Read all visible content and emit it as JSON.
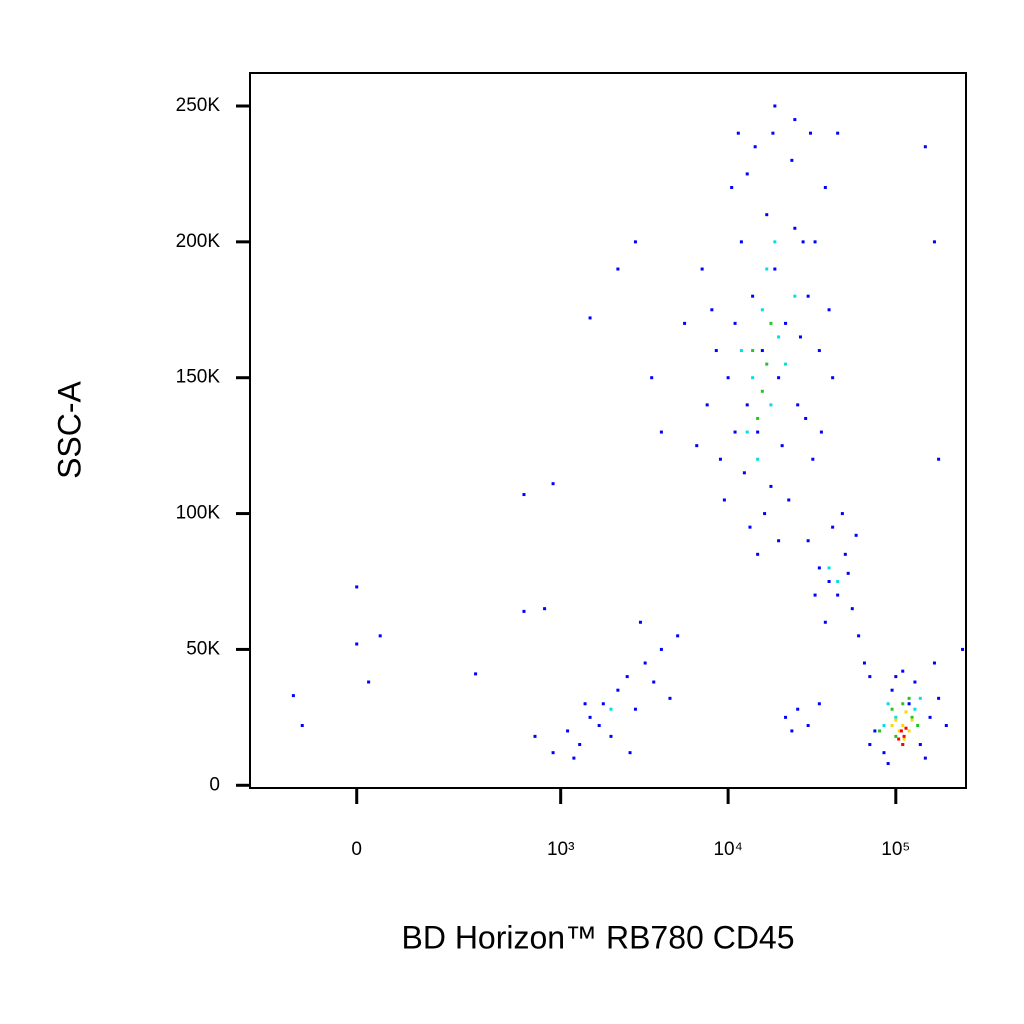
{
  "chart_data": {
    "type": "scatter",
    "xlabel": "BD Horizon™ RB780  CD45",
    "ylabel": "SSC-A",
    "xscale": "biexponential",
    "xlim": [
      -250,
      262144
    ],
    "ylim": [
      -1000,
      262144
    ],
    "xticks": [
      0,
      {
        "value": 1000,
        "label": "10³"
      },
      {
        "value": 10000,
        "label": "10⁴"
      },
      {
        "value": 100000,
        "label": "10⁵"
      }
    ],
    "yticks": [
      {
        "value": 0,
        "label": "0"
      },
      {
        "value": 50000,
        "label": "50K"
      },
      {
        "value": 100000,
        "label": "100K"
      },
      {
        "value": 150000,
        "label": "150K"
      },
      {
        "value": 200000,
        "label": "200K"
      },
      {
        "value": 250000,
        "label": "250K"
      }
    ],
    "series": [
      {
        "color": "#0000ff",
        "x": [
          9000,
          10000,
          11000,
          12000,
          13000,
          14000,
          15000,
          16000,
          17000,
          18000,
          19000,
          20000,
          22000,
          24000,
          26000,
          28000,
          30000,
          32000,
          35000,
          38000,
          9500,
          8500,
          8000,
          7500,
          10500,
          11500,
          12500,
          13500,
          14500,
          16500,
          18500,
          21000,
          23000,
          25000,
          27000,
          29000,
          31000,
          33000,
          36000,
          40000,
          42000,
          45000,
          7000,
          6500,
          20000,
          15000,
          25000,
          19000,
          13000,
          11000,
          30000,
          35000,
          40000,
          45000,
          50000,
          55000,
          38000,
          42000,
          60000,
          48000,
          33000,
          52000,
          65000,
          70000,
          58000,
          75000,
          85000,
          95000,
          120000,
          140000,
          160000,
          180000,
          70000,
          100000,
          130000,
          150000,
          200000,
          90000,
          170000,
          110000,
          22000,
          26000,
          30000,
          24000,
          35000,
          900,
          1100,
          1300,
          1500,
          1800,
          2000,
          2200,
          2500,
          2800,
          3200,
          3600,
          4000,
          4500,
          5000,
          1200,
          1700,
          2600,
          3000,
          700,
          1400,
          -120,
          -100,
          0,
          0,
          40,
          20,
          300,
          600,
          900,
          1500,
          2200,
          2800,
          3500,
          4000,
          5500,
          600,
          800,
          150000,
          170000,
          180000,
          250000
        ],
        "values": [
          120000,
          150000,
          170000,
          200000,
          140000,
          180000,
          130000,
          160000,
          210000,
          110000,
          190000,
          150000,
          170000,
          230000,
          140000,
          200000,
          180000,
          120000,
          160000,
          220000,
          105000,
          160000,
          175000,
          140000,
          220000,
          240000,
          115000,
          95000,
          235000,
          100000,
          240000,
          125000,
          105000,
          245000,
          165000,
          135000,
          240000,
          200000,
          130000,
          175000,
          150000,
          240000,
          190000,
          125000,
          90000,
          85000,
          205000,
          250000,
          225000,
          130000,
          90000,
          80000,
          75000,
          70000,
          85000,
          65000,
          60000,
          95000,
          55000,
          100000,
          70000,
          78000,
          45000,
          40000,
          92000,
          20000,
          12000,
          35000,
          30000,
          15000,
          25000,
          32000,
          15000,
          40000,
          38000,
          10000,
          22000,
          8000,
          45000,
          42000,
          25000,
          28000,
          22000,
          20000,
          30000,
          12000,
          20000,
          15000,
          25000,
          30000,
          18000,
          35000,
          40000,
          28000,
          45000,
          38000,
          50000,
          32000,
          55000,
          10000,
          22000,
          12000,
          60000,
          18000,
          30000,
          33000,
          22000,
          73000,
          52000,
          55000,
          38000,
          41000,
          107000,
          111000,
          172000,
          190000,
          200000,
          150000,
          130000,
          170000,
          64000,
          65000,
          235000,
          200000,
          120000,
          50000
        ]
      },
      {
        "color": "#00e0e0",
        "x": [
          12000,
          14000,
          16000,
          18000,
          20000,
          13000,
          17000,
          22000,
          15000,
          19000,
          40000,
          45000,
          90000,
          130000,
          110000,
          100000,
          85000,
          140000,
          2000,
          25000
        ],
        "values": [
          160000,
          150000,
          175000,
          140000,
          165000,
          130000,
          190000,
          155000,
          120000,
          200000,
          80000,
          75000,
          30000,
          28000,
          15000,
          25000,
          22000,
          32000,
          28000,
          180000
        ]
      },
      {
        "color": "#22c822",
        "x": [
          14000,
          16000,
          18000,
          15000,
          95000,
          110000,
          125000,
          100000,
          135000,
          80000,
          17000,
          120000
        ],
        "values": [
          160000,
          145000,
          170000,
          135000,
          28000,
          30000,
          25000,
          18000,
          22000,
          20000,
          155000,
          32000
        ]
      },
      {
        "color": "#ffd700",
        "x": [
          100000,
          110000,
          115000,
          105000,
          120000,
          95000,
          112000,
          125000
        ],
        "values": [
          24000,
          22000,
          27000,
          20000,
          20000,
          22000,
          17000,
          24000
        ]
      },
      {
        "color": "#ff0000",
        "x": [
          108000,
          112000,
          104000,
          115000,
          110000
        ],
        "values": [
          20000,
          18000,
          17000,
          21000,
          15000
        ]
      }
    ]
  }
}
